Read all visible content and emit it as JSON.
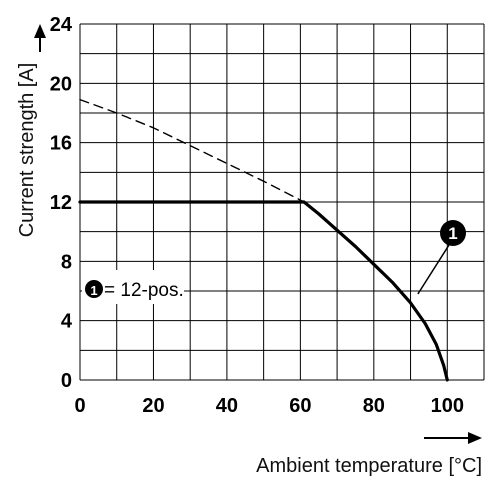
{
  "chart_data": {
    "type": "line",
    "xlabel": "Ambient temperature [°C]",
    "ylabel": "Current strength [A]",
    "xlim": [
      0,
      110
    ],
    "ylim": [
      0,
      24
    ],
    "xticks": [
      0,
      20,
      40,
      60,
      80,
      100
    ],
    "yticks": [
      0,
      4,
      8,
      12,
      16,
      20,
      24
    ],
    "grid": true,
    "series": [
      {
        "name": "1",
        "style": "solid",
        "points": [
          [
            0,
            12
          ],
          [
            61,
            12
          ],
          [
            65,
            11.2
          ],
          [
            70,
            10.1
          ],
          [
            75,
            9.0
          ],
          [
            80,
            7.8
          ],
          [
            85,
            6.6
          ],
          [
            90,
            5.2
          ],
          [
            94,
            3.8
          ],
          [
            97,
            2.4
          ],
          [
            99,
            1.0
          ],
          [
            100,
            0
          ]
        ]
      },
      {
        "name": "",
        "style": "dashed",
        "points": [
          [
            0,
            18.9
          ],
          [
            10,
            18.0
          ],
          [
            20,
            17.0
          ],
          [
            30,
            15.8
          ],
          [
            40,
            14.6
          ],
          [
            50,
            13.4
          ],
          [
            61,
            12
          ]
        ]
      }
    ],
    "callout": {
      "label": "1",
      "points_to": [
        92,
        5.8
      ]
    },
    "legend": {
      "marker": "1",
      "text": "= 12-pos."
    },
    "colors": {
      "line": "#000000",
      "grid": "#000000",
      "background": "#ffffff"
    }
  }
}
